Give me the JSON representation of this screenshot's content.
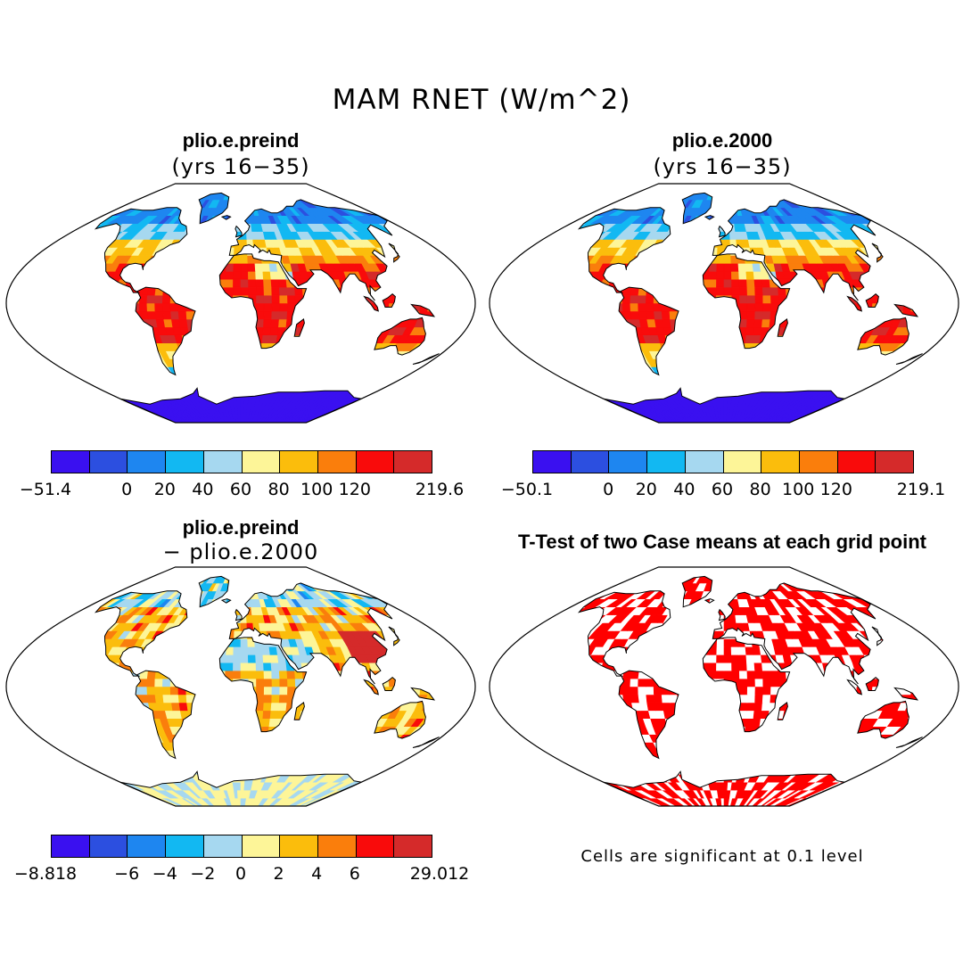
{
  "title": "MAM RNET (W/m^2)",
  "panels": [
    {
      "title": "plio.e.preind",
      "subtitle": "(yrs 16−35)"
    },
    {
      "title": "plio.e.2000",
      "subtitle": "(yrs 16−35)"
    },
    {
      "title": "plio.e.preind",
      "subtitle": "− plio.e.2000"
    },
    {
      "title": "T-Test of two Case means at each grid point",
      "subtitle": ""
    }
  ],
  "colorbars": [
    {
      "labels": [
        "−51.4",
        "0",
        "20",
        "40",
        "60",
        "80",
        "100",
        "120",
        "219.6"
      ]
    },
    {
      "labels": [
        "−50.1",
        "0",
        "20",
        "40",
        "60",
        "80",
        "100",
        "120",
        "219.1"
      ]
    },
    {
      "labels": [
        "−8.818",
        "−6",
        "−4",
        "−2",
        "0",
        "2",
        "4",
        "6",
        "29.012"
      ]
    }
  ],
  "palette": [
    "#3a10f0",
    "#2c4fe0",
    "#1e86f0",
    "#12b8f2",
    "#a6d8f0",
    "#fdf598",
    "#fbbd0c",
    "#fa7e0c",
    "#f90b0b",
    "#d52a2a"
  ],
  "significance_color": "#ff0000",
  "note": "Cells are significant at 0.1 level"
}
